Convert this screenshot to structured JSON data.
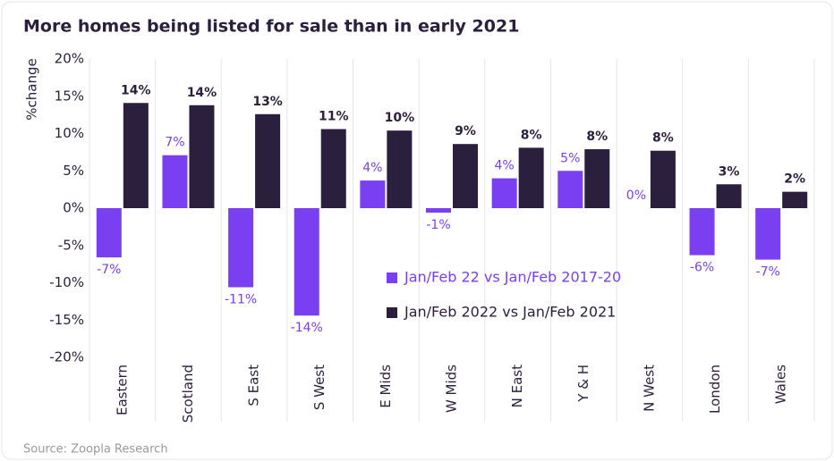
{
  "chart_data": {
    "type": "bar",
    "title": "More homes being listed for sale than in early 2021",
    "y_label": "%change",
    "source": "Source: Zoopla Research",
    "categories": [
      "Eastern",
      "Scotland",
      "S East",
      "S West",
      "E Mids",
      "W Mids",
      "N East",
      "Y & H",
      "N West",
      "London",
      "Wales"
    ],
    "series": [
      {
        "name": "Jan/Feb 22 vs Jan/Feb 2017-20",
        "color": "#7b3ff2",
        "values": [
          -6.6,
          7.1,
          -10.6,
          -14.4,
          3.7,
          -0.6,
          4.0,
          5.0,
          0,
          -6.3,
          -6.9
        ],
        "value_labels": [
          "-7%",
          "7%",
          "-11%",
          "-14%",
          "4%",
          "-1%",
          "4%",
          "5%",
          "0%",
          "-6%",
          "-7%"
        ]
      },
      {
        "name": "Jan/Feb 2022 vs Jan/Feb 2021",
        "color": "#2b1f3e",
        "values": [
          14.1,
          13.8,
          12.6,
          10.6,
          10.4,
          8.6,
          8.1,
          7.9,
          7.7,
          3.2,
          2.2
        ],
        "value_labels": [
          "14%",
          "14%",
          "13%",
          "11%",
          "10%",
          "9%",
          "8%",
          "8%",
          "8%",
          "3%",
          "2%"
        ]
      }
    ],
    "ylim": [
      -20,
      20
    ],
    "yticks": [
      {
        "value": -20,
        "label": "-20%"
      },
      {
        "value": -15,
        "label": "-15%"
      },
      {
        "value": -10,
        "label": "-10%"
      },
      {
        "value": -5,
        "label": "-5%"
      },
      {
        "value": 0,
        "label": "0%"
      },
      {
        "value": 5,
        "label": "5%"
      },
      {
        "value": 10,
        "label": "10%"
      },
      {
        "value": 15,
        "label": "15%"
      },
      {
        "value": 20,
        "label": "20%"
      }
    ],
    "legend": "lower center"
  }
}
